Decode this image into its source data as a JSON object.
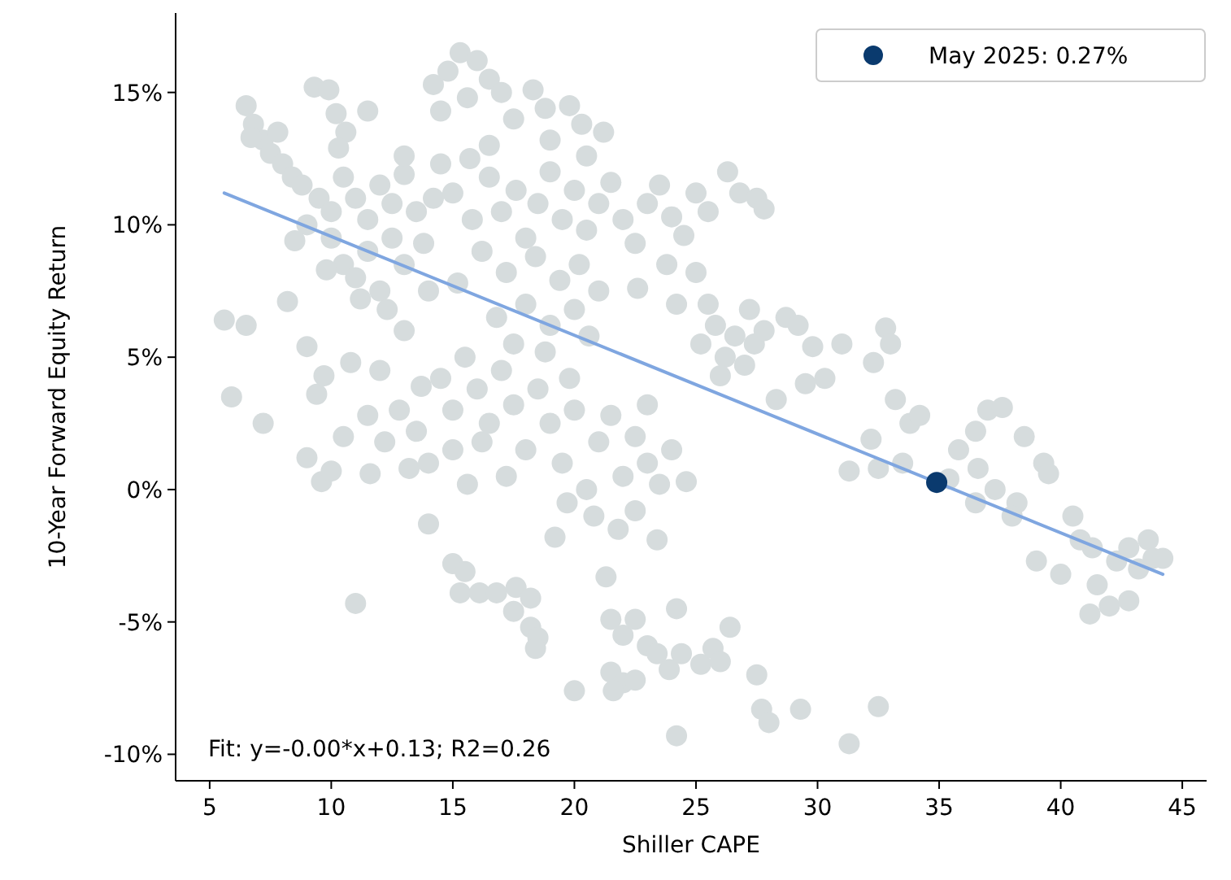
{
  "chart_data": {
    "type": "scatter",
    "xlabel": "Shiller CAPE",
    "ylabel": "10-Year Forward Equity Return",
    "xlim": [
      3.6,
      46
    ],
    "ylim": [
      -11,
      18
    ],
    "xticks": [
      5,
      10,
      15,
      20,
      25,
      30,
      35,
      40,
      45
    ],
    "yticks": [
      {
        "value": -10,
        "label": "-10%"
      },
      {
        "value": -5,
        "label": "-5%"
      },
      {
        "value": 0,
        "label": "0%"
      },
      {
        "value": 5,
        "label": "5%"
      },
      {
        "value": 10,
        "label": "10%"
      },
      {
        "value": 15,
        "label": "15%"
      }
    ],
    "grid": false,
    "legend": "top right",
    "marker": "circle",
    "annotations": [
      "Fit: y=-0.00*x+0.13; R2=0.26"
    ],
    "series": [
      {
        "color": "#d6dcdd",
        "x": [
          6.5,
          6.8,
          7.2,
          7.5,
          8,
          8.4,
          6.7,
          7.8,
          9.3,
          9.9,
          10.2,
          10.6,
          10.3,
          11.5,
          8.8,
          9.5,
          10,
          10.5,
          11,
          11.5,
          12,
          12.5,
          13,
          13.5,
          9,
          10,
          10.5,
          11,
          11.5,
          12,
          12.5,
          13,
          13.8,
          14.2,
          9.8,
          11.2,
          12.3,
          13,
          14,
          8.5,
          14.5,
          13,
          14.2,
          14.8,
          15.3,
          16,
          16.5,
          17,
          15.6,
          14.5,
          17.5,
          18.3,
          18.8,
          19,
          19.8,
          20.3,
          20.5,
          21.2,
          16.5,
          15.7,
          15,
          15.8,
          16.5,
          17,
          17.6,
          18,
          18.5,
          19,
          19.5,
          20,
          20.5,
          21,
          21.5,
          22,
          22.5,
          16.2,
          17.2,
          18.4,
          19.4,
          20.2,
          15.2,
          16.8,
          18,
          19,
          20,
          21,
          17.5,
          18.8,
          20.6,
          23,
          23.5,
          24,
          24.5,
          25,
          25.5,
          26.3,
          26.8,
          27.5,
          27.8,
          23.8,
          22.6,
          24.2,
          25,
          25.2,
          25.8,
          26.2,
          26.6,
          27,
          27.4,
          27.8,
          26,
          25.5,
          27.2,
          28.7,
          29.2,
          29.8,
          29.5,
          28.3,
          30.3,
          31,
          32.3,
          32.8,
          33,
          32.2,
          33.2,
          33.8,
          31.3,
          32.5,
          33.5,
          34.2,
          35.4,
          35.8,
          36.5,
          37,
          37.6,
          36.6,
          37.3,
          38.2,
          38.5,
          39.3,
          36.5,
          39,
          39.5,
          40.5,
          40,
          41.3,
          41.5,
          41.2,
          42,
          42.3,
          42.8,
          43.2,
          43.6,
          43.8,
          42.8,
          44.2,
          40.8,
          38,
          5.6,
          5.9,
          6.5,
          7.2,
          8.2,
          9,
          9.4,
          9.7,
          9,
          9.6,
          10,
          11,
          10.5,
          10.8,
          11.5,
          12,
          12.2,
          12.8,
          13.2,
          13.5,
          14,
          14,
          11.6,
          13.7,
          14.5,
          15,
          15.5,
          16,
          16.5,
          17,
          17.5,
          18,
          18.5,
          16.2,
          15,
          15.6,
          17.2,
          19,
          19.5,
          20,
          20.5,
          21,
          21.5,
          22,
          22.5,
          23,
          23.5,
          20.8,
          21.8,
          22.5,
          19.7,
          19.8,
          23,
          24,
          24.6,
          23.4,
          19.2,
          15,
          15.5,
          15.3,
          16.1,
          16.8,
          17.6,
          17.5,
          18.2,
          18.2,
          18.5,
          18.4,
          20,
          21.3,
          21.5,
          22,
          22.5,
          21.5,
          22,
          21.6,
          22.5,
          23,
          23.4,
          23.9,
          24.4,
          24.2,
          25.2,
          25.7,
          26,
          27.5,
          27.7,
          28,
          29.3,
          31.3,
          32.5,
          26.4,
          24.2
        ],
        "values": [
          14.5,
          13.8,
          13.2,
          12.7,
          12.3,
          11.8,
          13.3,
          13.5,
          15.2,
          15.1,
          14.2,
          13.5,
          12.9,
          14.3,
          11.5,
          11,
          10.5,
          11.8,
          11,
          10.2,
          11.5,
          10.8,
          11.9,
          10.5,
          10,
          9.5,
          8.5,
          8,
          9,
          7.5,
          9.5,
          8.5,
          9.3,
          11,
          8.3,
          7.2,
          6.8,
          6,
          7.5,
          9.4,
          12.3,
          12.6,
          15.3,
          15.8,
          16.5,
          16.2,
          15.5,
          15,
          14.8,
          14.3,
          14,
          15.1,
          14.4,
          13.2,
          14.5,
          13.8,
          12.6,
          13.5,
          13,
          12.5,
          11.2,
          10.2,
          11.8,
          10.5,
          11.3,
          9.5,
          10.8,
          12,
          10.2,
          11.3,
          9.8,
          10.8,
          11.6,
          10.2,
          9.3,
          9,
          8.2,
          8.8,
          7.9,
          8.5,
          7.8,
          6.5,
          7,
          6.2,
          6.8,
          7.5,
          5.5,
          5.2,
          5.8,
          10.8,
          11.5,
          10.3,
          9.6,
          11.2,
          10.5,
          12,
          11.2,
          11,
          10.6,
          8.5,
          7.6,
          7,
          8.2,
          5.5,
          6.2,
          5,
          5.8,
          4.7,
          5.5,
          6,
          4.3,
          7,
          6.8,
          6.5,
          6.2,
          5.4,
          4,
          3.4,
          4.2,
          5.5,
          4.8,
          6.1,
          5.5,
          1.9,
          3.4,
          2.5,
          0.7,
          0.8,
          1.0,
          2.8,
          0.4,
          1.5,
          2.2,
          3,
          3.1,
          0.8,
          0.0,
          -0.5,
          2.0,
          1.0,
          -0.5,
          -2.7,
          0.6,
          -1.0,
          -3.2,
          -2.2,
          -3.6,
          -4.7,
          -4.4,
          -2.7,
          -2.2,
          -3.0,
          -1.9,
          -2.6,
          -4.2,
          -2.6,
          -1.9,
          -1.0,
          6.4,
          3.5,
          6.2,
          2.5,
          7.1,
          5.4,
          3.6,
          4.3,
          1.2,
          0.3,
          0.7,
          -4.3,
          2,
          4.8,
          2.8,
          4.5,
          1.8,
          3,
          0.8,
          2.2,
          1,
          -1.3,
          0.6,
          3.9,
          4.2,
          3,
          5,
          3.8,
          2.5,
          4.5,
          3.2,
          1.5,
          3.8,
          1.8,
          1.5,
          0.2,
          0.5,
          2.5,
          1,
          3,
          0,
          1.8,
          2.8,
          0.5,
          2,
          1,
          0.2,
          -1,
          -1.5,
          -0.8,
          -0.5,
          4.2,
          3.2,
          1.5,
          0.3,
          -1.9,
          -1.8,
          -2.8,
          -3.1,
          -3.9,
          -3.9,
          -3.9,
          -3.7,
          -4.6,
          -4.1,
          -5.2,
          -5.6,
          -6.0,
          -7.6,
          -3.3,
          -4.9,
          -5.5,
          -4.9,
          -6.9,
          -7.3,
          -7.6,
          -7.2,
          -5.9,
          -6.2,
          -6.8,
          -6.2,
          -9.3,
          -6.6,
          -6.0,
          -6.5,
          -7.0,
          -8.3,
          -8.8,
          -8.3,
          -9.6,
          -8.2,
          -5.2,
          -4.5
        ]
      },
      {
        "type": "line",
        "marker": "none",
        "color": "#7fa6e0",
        "x": [
          5.6,
          44.2
        ],
        "values": [
          11.2,
          -3.2
        ]
      },
      {
        "name": "May 2025: 0.27%",
        "color": "#0a3a6e",
        "x": [
          34.9
        ],
        "values": [
          0.27
        ]
      }
    ]
  }
}
